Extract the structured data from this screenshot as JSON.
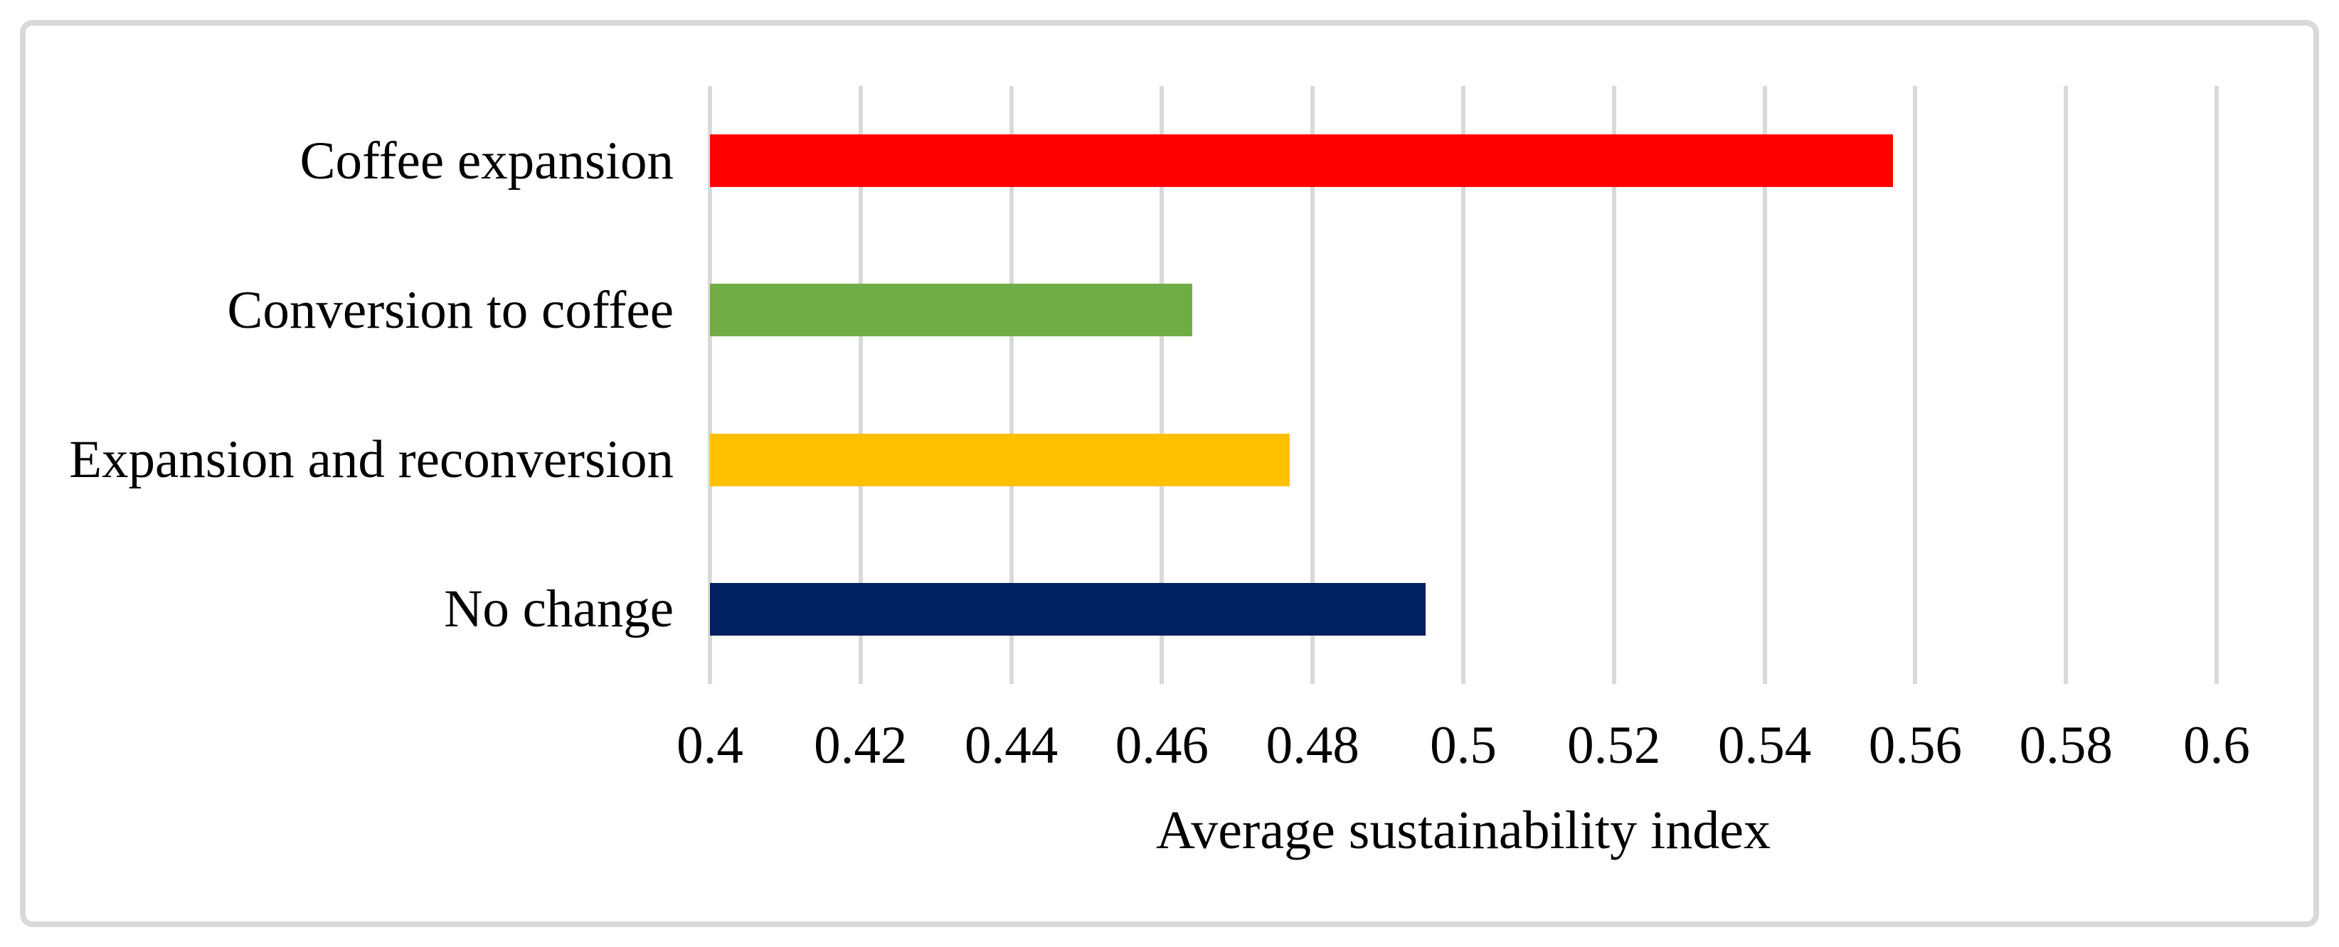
{
  "chart_data": {
    "type": "bar",
    "orientation": "horizontal",
    "title": "",
    "xlabel": "Average sustainability index",
    "ylabel": "",
    "categories": [
      "Coffee expansion",
      "Conversion to coffee",
      "Expansion and reconversion",
      "No change"
    ],
    "values": [
      0.557,
      0.464,
      0.477,
      0.495
    ],
    "bar_colors": [
      "#FF0000",
      "#70AD47",
      "#FFC000",
      "#002060"
    ],
    "xlim": [
      0.4,
      0.6
    ],
    "xticks": [
      0.4,
      0.42,
      0.44,
      0.46,
      0.48,
      0.5,
      0.52,
      0.54,
      0.56,
      0.58,
      0.6
    ],
    "xtick_labels": [
      "0.4",
      "0.42",
      "0.44",
      "0.46",
      "0.48",
      "0.5",
      "0.52",
      "0.54",
      "0.56",
      "0.58",
      "0.6"
    ],
    "grid": "vertical-gridlines-on",
    "legend": "none",
    "gridline_color": "#D9D9D9",
    "frame_border_color": "#D9D9D9",
    "text_color": "#000000",
    "background_color": "#FFFFFF"
  }
}
